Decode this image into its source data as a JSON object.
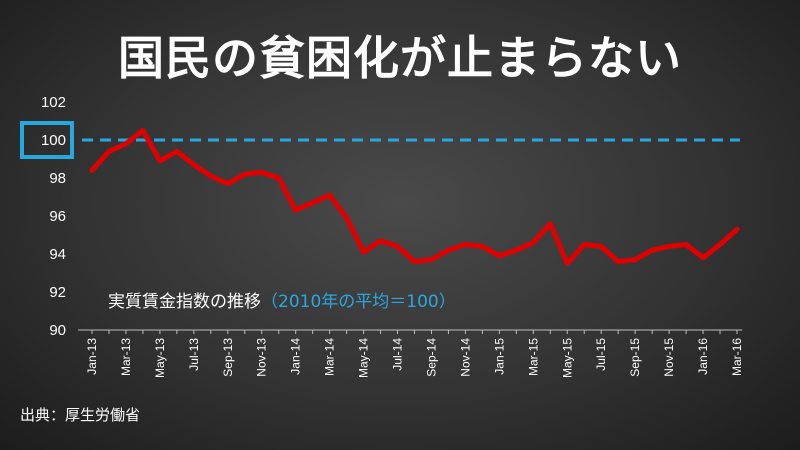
{
  "title": "国民の貧困化が止まらない",
  "source": "出典：厚生労働省",
  "colors": {
    "line": "#e00000",
    "reference": "#29a8e0",
    "highlight_box": "#29a8e0",
    "text": "#ffffff"
  },
  "chart_data": {
    "type": "line",
    "title": "国民の貧困化が止まらない",
    "annotation_main": "実質賃金指数の推移",
    "annotation_sub": "（2010年の平均＝100）",
    "ylim": [
      90,
      102
    ],
    "yticks": [
      "90",
      "92",
      "94",
      "96",
      "98",
      "100",
      "102"
    ],
    "highlighted_ytick": "100",
    "reference_line": 100,
    "grid": false,
    "x": [
      "Jan-13",
      "Feb-13",
      "Mar-13",
      "Apr-13",
      "May-13",
      "Jun-13",
      "Jul-13",
      "Aug-13",
      "Sep-13",
      "Oct-13",
      "Nov-13",
      "Dec-13",
      "Jan-14",
      "Feb-14",
      "Mar-14",
      "Apr-14",
      "May-14",
      "Jun-14",
      "Jul-14",
      "Aug-14",
      "Sep-14",
      "Oct-14",
      "Nov-14",
      "Dec-14",
      "Jan-15",
      "Feb-15",
      "Mar-15",
      "Apr-15",
      "May-15",
      "Jun-15",
      "Jul-15",
      "Aug-15",
      "Sep-15",
      "Oct-15",
      "Nov-15",
      "Dec-15",
      "Jan-16",
      "Feb-16",
      "Mar-16"
    ],
    "xtick_labels": [
      "Jan-13",
      "Mar-13",
      "May-13",
      "Jul-13",
      "Sep-13",
      "Nov-13",
      "Jan-14",
      "Mar-14",
      "May-14",
      "Jul-14",
      "Sep-14",
      "Nov-14",
      "Jan-15",
      "Mar-15",
      "May-15",
      "Jul-15",
      "Sep-15",
      "Nov-15",
      "Jan-16",
      "Mar-16"
    ],
    "series": [
      {
        "values": [
          98.4,
          99.4,
          99.8,
          100.5,
          98.9,
          99.4,
          98.7,
          98.1,
          97.7,
          98.2,
          98.3,
          98.0,
          96.3,
          96.7,
          97.1,
          95.9,
          94.1,
          94.7,
          94.4,
          93.6,
          93.7,
          94.2,
          94.5,
          94.4,
          93.9,
          94.2,
          94.6,
          95.6,
          93.5,
          94.5,
          94.4,
          93.6,
          93.7,
          94.2,
          94.4,
          94.5,
          93.8,
          94.5,
          95.3
        ]
      }
    ]
  }
}
